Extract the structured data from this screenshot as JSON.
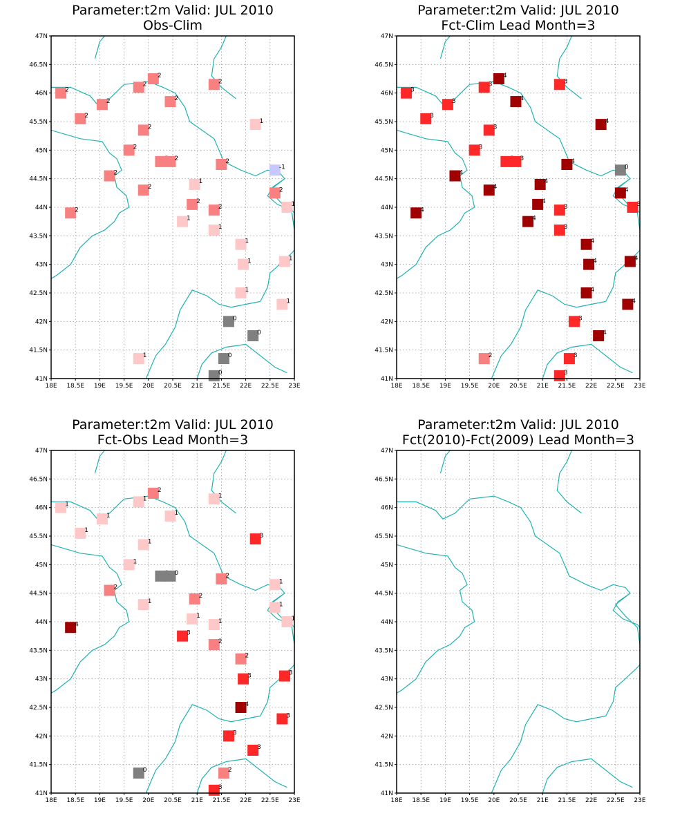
{
  "colors": {
    "coast": "#20b2b2",
    "value_-1": "#c8c8ff",
    "value_0": "#808080",
    "value_1": "#ffc8c8",
    "value_2": "#f88080",
    "value_3": "#ff2828",
    "value_4": "#a00000"
  },
  "chart_data": [
    {
      "type": "scatter",
      "title_line1": "Parameter:t2m Valid: JUL 2010",
      "title_line2": "Obs-Clim",
      "xlim": [
        18,
        23
      ],
      "ylim": [
        41,
        47
      ],
      "x_ticks": [
        "18E",
        "18.5E",
        "19E",
        "19.5E",
        "20E",
        "20.5E",
        "21E",
        "21.5E",
        "22E",
        "22.5E",
        "23E"
      ],
      "y_ticks": [
        "41N",
        "41.5N",
        "42N",
        "42.5N",
        "43N",
        "43.5N",
        "44N",
        "44.5N",
        "45N",
        "45.5N",
        "46N",
        "46.5N",
        "47N"
      ],
      "grid": true,
      "points": [
        {
          "lon": 18.2,
          "lat": 46.0,
          "value": 2
        },
        {
          "lon": 19.8,
          "lat": 46.1,
          "value": 2
        },
        {
          "lon": 20.1,
          "lat": 46.25,
          "value": 2
        },
        {
          "lon": 21.35,
          "lat": 46.15,
          "value": 2
        },
        {
          "lon": 19.05,
          "lat": 45.8,
          "value": 2
        },
        {
          "lon": 20.45,
          "lat": 45.85,
          "value": 2
        },
        {
          "lon": 18.6,
          "lat": 45.55,
          "value": 2
        },
        {
          "lon": 19.9,
          "lat": 45.35,
          "value": 2
        },
        {
          "lon": 22.2,
          "lat": 45.45,
          "value": 1
        },
        {
          "lon": 19.6,
          "lat": 45.0,
          "value": 2
        },
        {
          "lon": 20.25,
          "lat": 44.8,
          "value": 2
        },
        {
          "lon": 20.45,
          "lat": 44.8,
          "value": 2
        },
        {
          "lon": 21.5,
          "lat": 44.75,
          "value": 2
        },
        {
          "lon": 22.6,
          "lat": 44.65,
          "value": -1
        },
        {
          "lon": 19.2,
          "lat": 44.55,
          "value": 2
        },
        {
          "lon": 20.95,
          "lat": 44.4,
          "value": 1
        },
        {
          "lon": 19.9,
          "lat": 44.3,
          "value": 2
        },
        {
          "lon": 22.6,
          "lat": 44.25,
          "value": 2
        },
        {
          "lon": 20.9,
          "lat": 44.05,
          "value": 2
        },
        {
          "lon": 21.35,
          "lat": 43.95,
          "value": 2
        },
        {
          "lon": 22.85,
          "lat": 44.0,
          "value": 1
        },
        {
          "lon": 18.4,
          "lat": 43.9,
          "value": 2
        },
        {
          "lon": 20.7,
          "lat": 43.75,
          "value": 1
        },
        {
          "lon": 21.35,
          "lat": 43.6,
          "value": 1
        },
        {
          "lon": 21.9,
          "lat": 43.35,
          "value": 1
        },
        {
          "lon": 21.95,
          "lat": 43.0,
          "value": 1
        },
        {
          "lon": 22.8,
          "lat": 43.05,
          "value": 1
        },
        {
          "lon": 21.9,
          "lat": 42.5,
          "value": 1
        },
        {
          "lon": 22.75,
          "lat": 42.3,
          "value": 1
        },
        {
          "lon": 21.65,
          "lat": 42.0,
          "value": 0
        },
        {
          "lon": 22.15,
          "lat": 41.75,
          "value": 0
        },
        {
          "lon": 19.8,
          "lat": 41.35,
          "value": 1
        },
        {
          "lon": 21.55,
          "lat": 41.35,
          "value": 0
        },
        {
          "lon": 21.35,
          "lat": 41.05,
          "value": 0
        }
      ]
    },
    {
      "type": "scatter",
      "title_line1": "Parameter:t2m Valid: JUL 2010",
      "title_line2": "Fct-Clim Lead Month=3",
      "xlim": [
        18,
        23
      ],
      "ylim": [
        41,
        47
      ],
      "x_ticks": [
        "18E",
        "18.5E",
        "19E",
        "19.5E",
        "20E",
        "20.5E",
        "21E",
        "21.5E",
        "22E",
        "22.5E",
        "23E"
      ],
      "y_ticks": [
        "41N",
        "41.5N",
        "42N",
        "42.5N",
        "43N",
        "43.5N",
        "44N",
        "44.5N",
        "45N",
        "45.5N",
        "46N",
        "46.5N",
        "47N"
      ],
      "grid": true,
      "points": [
        {
          "lon": 18.2,
          "lat": 46.0,
          "value": 3
        },
        {
          "lon": 19.8,
          "lat": 46.1,
          "value": 3
        },
        {
          "lon": 20.1,
          "lat": 46.25,
          "value": 4
        },
        {
          "lon": 21.35,
          "lat": 46.15,
          "value": 3
        },
        {
          "lon": 19.05,
          "lat": 45.8,
          "value": 3
        },
        {
          "lon": 20.45,
          "lat": 45.85,
          "value": 4
        },
        {
          "lon": 18.6,
          "lat": 45.55,
          "value": 3
        },
        {
          "lon": 19.9,
          "lat": 45.35,
          "value": 3
        },
        {
          "lon": 22.2,
          "lat": 45.45,
          "value": 4
        },
        {
          "lon": 19.6,
          "lat": 45.0,
          "value": 3
        },
        {
          "lon": 20.25,
          "lat": 44.8,
          "value": 3
        },
        {
          "lon": 20.45,
          "lat": 44.8,
          "value": 3
        },
        {
          "lon": 21.5,
          "lat": 44.75,
          "value": 4
        },
        {
          "lon": 22.6,
          "lat": 44.65,
          "value": 0
        },
        {
          "lon": 19.2,
          "lat": 44.55,
          "value": 4
        },
        {
          "lon": 20.95,
          "lat": 44.4,
          "value": 4
        },
        {
          "lon": 19.9,
          "lat": 44.3,
          "value": 4
        },
        {
          "lon": 22.6,
          "lat": 44.25,
          "value": 4
        },
        {
          "lon": 20.9,
          "lat": 44.05,
          "value": 4
        },
        {
          "lon": 21.35,
          "lat": 43.95,
          "value": 3
        },
        {
          "lon": 22.85,
          "lat": 44.0,
          "value": 3
        },
        {
          "lon": 18.4,
          "lat": 43.9,
          "value": 4
        },
        {
          "lon": 20.7,
          "lat": 43.75,
          "value": 4
        },
        {
          "lon": 21.35,
          "lat": 43.6,
          "value": 3
        },
        {
          "lon": 21.9,
          "lat": 43.35,
          "value": 4
        },
        {
          "lon": 21.95,
          "lat": 43.0,
          "value": 4
        },
        {
          "lon": 22.8,
          "lat": 43.05,
          "value": 4
        },
        {
          "lon": 21.9,
          "lat": 42.5,
          "value": 4
        },
        {
          "lon": 22.75,
          "lat": 42.3,
          "value": 4
        },
        {
          "lon": 21.65,
          "lat": 42.0,
          "value": 3
        },
        {
          "lon": 22.15,
          "lat": 41.75,
          "value": 4
        },
        {
          "lon": 19.8,
          "lat": 41.35,
          "value": 2
        },
        {
          "lon": 21.55,
          "lat": 41.35,
          "value": 3
        },
        {
          "lon": 21.35,
          "lat": 41.05,
          "value": 3
        }
      ]
    },
    {
      "type": "scatter",
      "title_line1": "Parameter:t2m Valid: JUL 2010",
      "title_line2": "Fct-Obs Lead Month=3",
      "xlim": [
        18,
        23
      ],
      "ylim": [
        41,
        47
      ],
      "x_ticks": [
        "18E",
        "18.5E",
        "19E",
        "19.5E",
        "20E",
        "20.5E",
        "21E",
        "21.5E",
        "22E",
        "22.5E",
        "23E"
      ],
      "y_ticks": [
        "41N",
        "41.5N",
        "42N",
        "42.5N",
        "43N",
        "43.5N",
        "44N",
        "44.5N",
        "45N",
        "45.5N",
        "46N",
        "46.5N",
        "47N"
      ],
      "grid": true,
      "points": [
        {
          "lon": 18.2,
          "lat": 46.0,
          "value": 1
        },
        {
          "lon": 19.8,
          "lat": 46.1,
          "value": 1
        },
        {
          "lon": 20.1,
          "lat": 46.25,
          "value": 2
        },
        {
          "lon": 21.35,
          "lat": 46.15,
          "value": 1
        },
        {
          "lon": 19.05,
          "lat": 45.8,
          "value": 1
        },
        {
          "lon": 20.45,
          "lat": 45.85,
          "value": 1
        },
        {
          "lon": 18.6,
          "lat": 45.55,
          "value": 1
        },
        {
          "lon": 19.9,
          "lat": 45.35,
          "value": 1
        },
        {
          "lon": 22.2,
          "lat": 45.45,
          "value": 3
        },
        {
          "lon": 19.6,
          "lat": 45.0,
          "value": 1
        },
        {
          "lon": 20.25,
          "lat": 44.8,
          "value": 0
        },
        {
          "lon": 20.45,
          "lat": 44.8,
          "value": 0
        },
        {
          "lon": 21.5,
          "lat": 44.75,
          "value": 2
        },
        {
          "lon": 22.6,
          "lat": 44.65,
          "value": 1
        },
        {
          "lon": 19.2,
          "lat": 44.55,
          "value": 2
        },
        {
          "lon": 20.95,
          "lat": 44.4,
          "value": 2
        },
        {
          "lon": 19.9,
          "lat": 44.3,
          "value": 1
        },
        {
          "lon": 22.6,
          "lat": 44.25,
          "value": 1
        },
        {
          "lon": 20.9,
          "lat": 44.05,
          "value": 1
        },
        {
          "lon": 21.35,
          "lat": 43.95,
          "value": 1
        },
        {
          "lon": 22.85,
          "lat": 44.0,
          "value": 1
        },
        {
          "lon": 18.4,
          "lat": 43.9,
          "value": 4
        },
        {
          "lon": 20.7,
          "lat": 43.75,
          "value": 3
        },
        {
          "lon": 21.35,
          "lat": 43.6,
          "value": 2
        },
        {
          "lon": 21.9,
          "lat": 43.35,
          "value": 2
        },
        {
          "lon": 21.95,
          "lat": 43.0,
          "value": 3
        },
        {
          "lon": 22.8,
          "lat": 43.05,
          "value": 3
        },
        {
          "lon": 21.9,
          "lat": 42.5,
          "value": 4
        },
        {
          "lon": 22.75,
          "lat": 42.3,
          "value": 3
        },
        {
          "lon": 21.65,
          "lat": 42.0,
          "value": 3
        },
        {
          "lon": 22.15,
          "lat": 41.75,
          "value": 3
        },
        {
          "lon": 19.8,
          "lat": 41.35,
          "value": 0
        },
        {
          "lon": 21.55,
          "lat": 41.35,
          "value": 2
        },
        {
          "lon": 21.35,
          "lat": 41.05,
          "value": 3
        }
      ]
    },
    {
      "type": "scatter",
      "title_line1": "Parameter:t2m Valid: JUL 2010",
      "title_line2": "Fct(2010)-Fct(2009) Lead Month=3",
      "xlim": [
        18,
        23
      ],
      "ylim": [
        41,
        47
      ],
      "x_ticks": [
        "18E",
        "18.5E",
        "19E",
        "19.5E",
        "20E",
        "20.5E",
        "21E",
        "21.5E",
        "22E",
        "22.5E",
        "23E"
      ],
      "y_ticks": [
        "41N",
        "41.5N",
        "42N",
        "42.5N",
        "43N",
        "43.5N",
        "44N",
        "44.5N",
        "45N",
        "45.5N",
        "46N",
        "46.5N",
        "47N"
      ],
      "grid": true,
      "points": []
    }
  ],
  "coastline_lonlat": [
    [
      [
        18.0,
        45.35
      ],
      [
        18.6,
        45.2
      ],
      [
        19.05,
        45.15
      ],
      [
        19.2,
        44.95
      ],
      [
        19.35,
        44.85
      ],
      [
        19.45,
        44.65
      ],
      [
        19.3,
        44.55
      ],
      [
        19.35,
        44.35
      ],
      [
        19.55,
        44.2
      ],
      [
        19.6,
        44.0
      ],
      [
        19.4,
        43.9
      ],
      [
        19.3,
        43.75
      ],
      [
        19.1,
        43.6
      ],
      [
        18.85,
        43.5
      ],
      [
        18.6,
        43.3
      ],
      [
        18.4,
        43.0
      ],
      [
        18.1,
        42.8
      ],
      [
        18.0,
        42.75
      ]
    ],
    [
      [
        18.0,
        46.1
      ],
      [
        18.4,
        46.1
      ],
      [
        18.8,
        45.95
      ],
      [
        18.95,
        45.8
      ],
      [
        19.2,
        45.9
      ],
      [
        19.5,
        46.15
      ],
      [
        20.0,
        46.2
      ],
      [
        20.3,
        46.1
      ],
      [
        20.55,
        46.0
      ],
      [
        20.75,
        45.75
      ],
      [
        20.85,
        45.5
      ],
      [
        21.35,
        45.2
      ],
      [
        21.45,
        45.0
      ],
      [
        21.55,
        44.8
      ],
      [
        21.9,
        44.65
      ],
      [
        22.2,
        44.55
      ],
      [
        22.45,
        44.65
      ],
      [
        22.7,
        44.6
      ],
      [
        22.8,
        44.5
      ],
      [
        22.55,
        44.35
      ],
      [
        22.45,
        44.2
      ],
      [
        22.65,
        44.05
      ],
      [
        22.95,
        43.95
      ],
      [
        23.0,
        43.9
      ]
    ],
    [
      [
        19.95,
        41.0
      ],
      [
        20.05,
        41.2
      ],
      [
        20.15,
        41.4
      ],
      [
        20.35,
        41.6
      ],
      [
        20.55,
        41.9
      ],
      [
        20.65,
        42.2
      ],
      [
        20.9,
        42.55
      ],
      [
        21.2,
        42.45
      ],
      [
        21.45,
        42.3
      ],
      [
        21.7,
        42.25
      ],
      [
        22.0,
        42.3
      ],
      [
        22.3,
        42.35
      ]
    ],
    [
      [
        22.3,
        42.35
      ],
      [
        22.45,
        42.6
      ],
      [
        22.5,
        42.85
      ],
      [
        22.7,
        43.0
      ],
      [
        22.95,
        43.2
      ],
      [
        23.0,
        43.25
      ]
    ],
    [
      [
        21.0,
        41.0
      ],
      [
        21.1,
        41.25
      ],
      [
        21.3,
        41.45
      ],
      [
        21.6,
        41.55
      ],
      [
        22.0,
        41.6
      ],
      [
        22.3,
        41.4
      ],
      [
        22.6,
        41.2
      ],
      [
        22.85,
        41.1
      ]
    ],
    [
      [
        21.8,
        45.9
      ],
      [
        21.5,
        46.1
      ],
      [
        21.3,
        46.3
      ],
      [
        21.35,
        46.6
      ],
      [
        21.5,
        46.8
      ],
      [
        21.6,
        47.0
      ]
    ],
    [
      [
        22.8,
        44.5
      ],
      [
        22.5,
        44.3
      ],
      [
        22.7,
        44.1
      ],
      [
        22.95,
        43.9
      ],
      [
        23.0,
        43.6
      ]
    ],
    [
      [
        18.9,
        46.6
      ],
      [
        19.0,
        46.9
      ],
      [
        19.1,
        47.0
      ]
    ]
  ]
}
